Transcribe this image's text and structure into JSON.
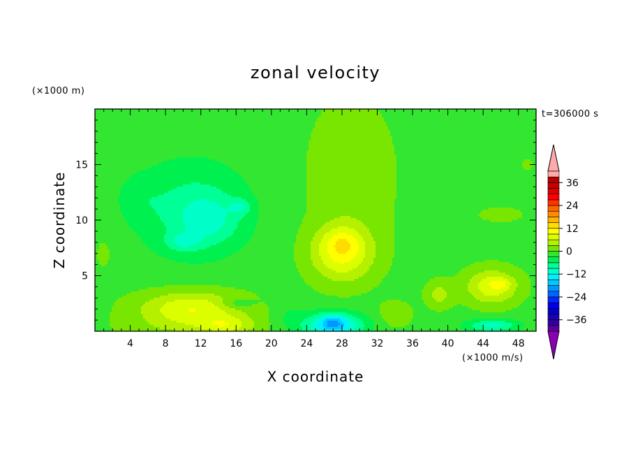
{
  "chart_data": {
    "type": "heatmap",
    "title": "zonal velocity",
    "xlabel": "X coordinate",
    "ylabel": "Z coordinate",
    "x_scale_note": "(×1000 m/s)",
    "y_scale_note": "(×1000 m)",
    "time_label": "t=306000 s",
    "xlim": [
      0,
      50
    ],
    "ylim": [
      0,
      20
    ],
    "x_ticks": [
      4,
      8,
      12,
      16,
      20,
      24,
      28,
      32,
      36,
      40,
      44,
      48
    ],
    "y_ticks": [
      5,
      10,
      15
    ],
    "colorbar": {
      "min": -42,
      "max": 42,
      "step": 3,
      "ticks": [
        36,
        24,
        12,
        0,
        -12,
        -24,
        -36
      ],
      "tick_labels": [
        "36",
        "24",
        "12",
        "0",
        "−12",
        "−24",
        "−36"
      ],
      "colors": [
        "#5a00a0",
        "#3200a0",
        "#1e00b4",
        "#0000c8",
        "#0000e6",
        "#0028ff",
        "#0064ff",
        "#0096ff",
        "#00c8ff",
        "#00f0ff",
        "#00ffc8",
        "#00ff96",
        "#00f050",
        "#32e632",
        "#78e600",
        "#b4f000",
        "#dcff00",
        "#ffff00",
        "#ffdc00",
        "#ffb400",
        "#ff8c00",
        "#ff6400",
        "#ff3200",
        "#ff0000",
        "#dc0000",
        "#c80000",
        "#b40000",
        "#ffaaaa"
      ],
      "under_color": "#8c00b4",
      "over_color": "#ffaaaa"
    },
    "base_value": -1,
    "features": [
      {
        "x": 11,
        "z": 11,
        "sx": 6.5,
        "sz": 4.5,
        "value": -6
      },
      {
        "x": 13,
        "z": 10,
        "sx": 3.5,
        "sz": 2.2,
        "value": -5
      },
      {
        "x": 10,
        "z": 8,
        "sx": 2.0,
        "sz": 0.8,
        "value": -5
      },
      {
        "x": 16.5,
        "z": 11.2,
        "sx": 1.2,
        "sz": 0.7,
        "value": -5
      },
      {
        "x": 5,
        "z": 12,
        "sx": 2.5,
        "sz": 2.0,
        "value": -2
      },
      {
        "x": 29,
        "z": 14,
        "sx": 5.0,
        "sz": 7.0,
        "value": 3
      },
      {
        "x": 28,
        "z": 7,
        "sx": 3.5,
        "sz": 2.5,
        "value": 10
      },
      {
        "x": 28,
        "z": 8,
        "sx": 2.0,
        "sz": 1.2,
        "value": 4
      },
      {
        "x": 11,
        "z": 2,
        "sx": 6.0,
        "sz": 1.6,
        "value": 10
      },
      {
        "x": 15,
        "z": 0.5,
        "sx": 3.0,
        "sz": 0.8,
        "value": 6
      },
      {
        "x": 10,
        "z": 0.3,
        "sx": 8.0,
        "sz": 1.0,
        "value": 2
      },
      {
        "x": 16,
        "z": 2.5,
        "sx": 2.0,
        "sz": 0.5,
        "value": -4
      },
      {
        "x": 27,
        "z": 0.5,
        "sx": 3.5,
        "sz": 1.2,
        "value": -14
      },
      {
        "x": 27,
        "z": 0.8,
        "sx": 1.2,
        "sz": 0.6,
        "value": -6
      },
      {
        "x": 45,
        "z": 4,
        "sx": 3.0,
        "sz": 1.6,
        "value": 9
      },
      {
        "x": 46,
        "z": 4.3,
        "sx": 1.2,
        "sz": 0.5,
        "value": 4
      },
      {
        "x": 39,
        "z": 3.3,
        "sx": 1.5,
        "sz": 1.2,
        "value": 5
      },
      {
        "x": 45,
        "z": 0.5,
        "sx": 3.0,
        "sz": 0.6,
        "value": -9
      },
      {
        "x": 1,
        "z": 7,
        "sx": 1.0,
        "sz": 1.6,
        "value": 2
      },
      {
        "x": 46,
        "z": 10.5,
        "sx": 3.0,
        "sz": 0.8,
        "value": 2
      },
      {
        "x": 49,
        "z": 15,
        "sx": 0.8,
        "sz": 0.5,
        "value": 2
      },
      {
        "x": 34,
        "z": 1.5,
        "sx": 2.0,
        "sz": 1.2,
        "value": 3
      },
      {
        "x": 22,
        "z": 1.5,
        "sx": 1.5,
        "sz": 1.5,
        "value": -2
      }
    ]
  }
}
